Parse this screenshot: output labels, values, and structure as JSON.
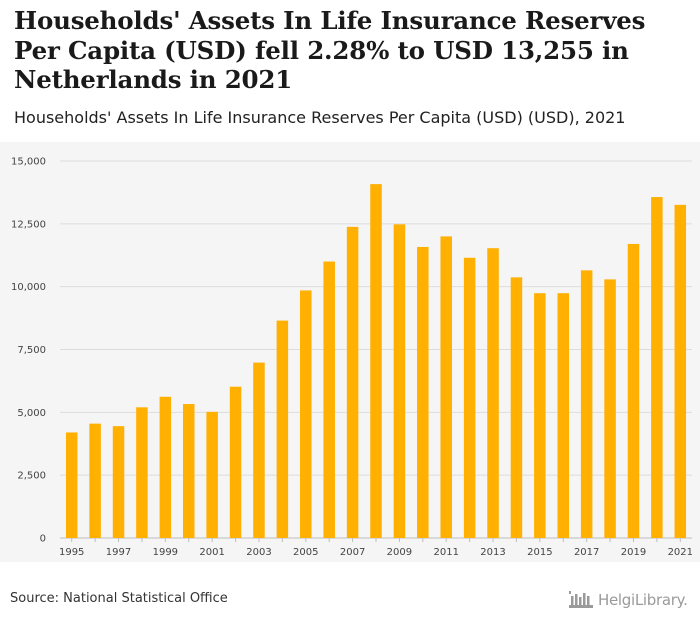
{
  "title": "Households' Assets In Life Insurance Reserves Per Capita (USD) fell 2.28% to USD 13,255 in Netherlands in 2021",
  "subtitle": "Households' Assets In Life Insurance Reserves Per Capita (USD) (USD), 2021",
  "source": "Source: National Statistical Office",
  "logo_text": "HelgiLibrary.",
  "colors": {
    "bar": "#FFB000",
    "grid": "#dcdcdc",
    "background": "#f5f5f5"
  },
  "chart_data": {
    "type": "bar",
    "title": "Households' Assets In Life Insurance Reserves Per Capita (USD) (USD), 2021",
    "xlabel": "",
    "ylabel": "",
    "ylim": [
      0,
      15000
    ],
    "yticks": [
      0,
      2500,
      5000,
      7500,
      10000,
      12500,
      15000
    ],
    "ytick_labels": [
      "0",
      "2,500",
      "5,000",
      "7,500",
      "10,000",
      "12,500",
      "15,000"
    ],
    "categories": [
      1995,
      1996,
      1997,
      1998,
      1999,
      2000,
      2001,
      2002,
      2003,
      2004,
      2005,
      2006,
      2007,
      2008,
      2009,
      2010,
      2011,
      2012,
      2013,
      2014,
      2015,
      2016,
      2017,
      2018,
      2019,
      2020,
      2021
    ],
    "xtick_labels": [
      "1995",
      "1997",
      "1999",
      "2001",
      "2003",
      "2005",
      "2007",
      "2009",
      "2011",
      "2013",
      "2015",
      "2017",
      "2019",
      "2021"
    ],
    "values": [
      4200,
      4550,
      4450,
      5200,
      5620,
      5330,
      5020,
      6020,
      6980,
      8650,
      9850,
      11000,
      12380,
      14080,
      12480,
      11580,
      12000,
      11150,
      11530,
      10370,
      9740,
      9740,
      10650,
      10290,
      11700,
      13565,
      13255
    ]
  }
}
